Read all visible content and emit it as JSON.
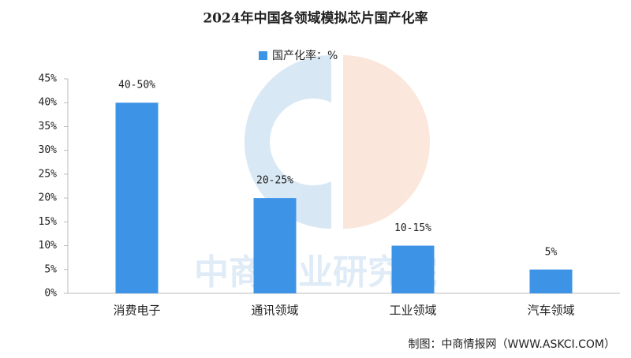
{
  "chart_data": {
    "type": "bar",
    "title": "2024年中国各领域模拟芯片国产化率",
    "categories": [
      "消费电子",
      "通讯领域",
      "工业领域",
      "汽车领域"
    ],
    "series": [
      {
        "name": "国产化率：%",
        "color": "#3d93e6",
        "values": [
          40,
          20,
          10,
          5
        ],
        "value_labels": [
          "40-50%",
          "20-25%",
          "10-15%",
          "5%"
        ]
      }
    ],
    "ylim": [
      0,
      45
    ],
    "yticks": [
      {
        "value": 0,
        "label": "0%"
      },
      {
        "value": 5,
        "label": "5%"
      },
      {
        "value": 10,
        "label": "10%"
      },
      {
        "value": 15,
        "label": "15%"
      },
      {
        "value": 20,
        "label": "20%"
      },
      {
        "value": 25,
        "label": "25%"
      },
      {
        "value": 30,
        "label": "30%"
      },
      {
        "value": 35,
        "label": "35%"
      },
      {
        "value": 40,
        "label": "40%"
      },
      {
        "value": 45,
        "label": "45%"
      }
    ],
    "legend": "top",
    "source": "制图：中商情报网（WWW.ASKCI.COM）",
    "watermark": "中商产业研究院"
  }
}
